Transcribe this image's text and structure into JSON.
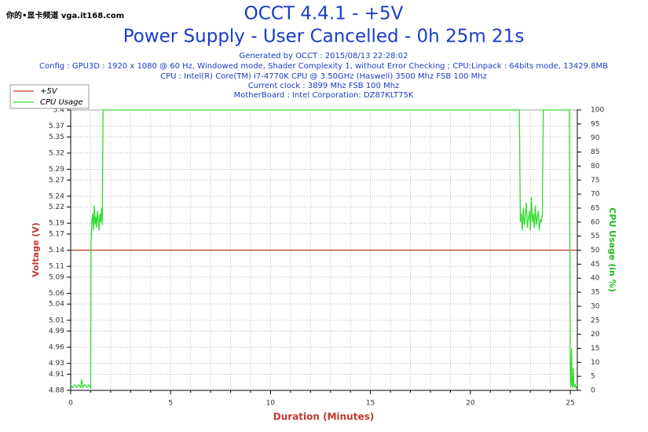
{
  "watermark": "你的•显卡频道 vga.it168.com",
  "chart_data": {
    "type": "line",
    "title": "OCCT 4.4.1 - +5V",
    "subtitle": "Power Supply - User Cancelled - 0h 25m 21s",
    "info": [
      "Generated by OCCT : 2015/08/13 22:28:02",
      "Config : GPU3D : 1920 x 1080 @ 60 Hz, Windowed mode, Shader Complexity 1, without Error Checking ; CPU:Linpack : 64bits mode, 13429.8MB",
      "CPU : Intel(R) Core(TM) i7-4770K CPU @ 3.50GHz (Haswell) 3500 Mhz FSB 100 Mhz",
      "Current clock : 3899 Mhz FSB 100 Mhz",
      "MotherBoard : Intel Corporation: DZ87KLT75K"
    ],
    "xlabel": "Duration (Minutes)",
    "ylabel": "Voltage (V)",
    "y2label": "CPU Usage (in %)",
    "xlim": [
      0,
      25.35
    ],
    "xticks": [
      0,
      5,
      10,
      15,
      20,
      25
    ],
    "x_minor_ticks": [
      1,
      2,
      3,
      4,
      6,
      7,
      8,
      9,
      11,
      12,
      13,
      14,
      16,
      17,
      18,
      19,
      21,
      22,
      23,
      24
    ],
    "ylim": [
      4.88,
      5.4
    ],
    "yticks": [
      4.88,
      4.91,
      4.93,
      4.96,
      4.99,
      5.01,
      5.04,
      5.06,
      5.09,
      5.11,
      5.14,
      5.17,
      5.19,
      5.22,
      5.24,
      5.27,
      5.29,
      5.32,
      5.35,
      5.37,
      5.4
    ],
    "y2lim": [
      0,
      100
    ],
    "y2ticks": [
      0,
      5,
      10,
      15,
      20,
      25,
      30,
      35,
      40,
      45,
      50,
      55,
      60,
      65,
      70,
      75,
      80,
      85,
      90,
      95,
      100
    ],
    "grid": true,
    "legend": "top-left",
    "series": [
      {
        "name": "+5V",
        "color": "#c0392b",
        "axis": "y",
        "x": [
          0,
          25.35
        ],
        "values": [
          5.14,
          5.14
        ]
      },
      {
        "name": "CPU Usage",
        "color": "#33dd33",
        "axis": "y2",
        "x": [
          0,
          0.1,
          0.2,
          0.3,
          0.4,
          0.5,
          0.55,
          0.6,
          0.7,
          0.8,
          0.9,
          1.0,
          1.02,
          1.06,
          1.1,
          1.14,
          1.18,
          1.22,
          1.26,
          1.3,
          1.34,
          1.38,
          1.42,
          1.46,
          1.5,
          1.54,
          1.58,
          1.62,
          22.45,
          22.5,
          22.55,
          22.6,
          22.65,
          22.7,
          22.75,
          22.8,
          22.85,
          22.9,
          22.95,
          23.0,
          23.05,
          23.1,
          23.15,
          23.2,
          23.25,
          23.3,
          23.35,
          23.4,
          23.45,
          23.5,
          23.55,
          23.6,
          23.65,
          24.95,
          25.0,
          25.03,
          25.06,
          25.09,
          25.12,
          25.15,
          25.18,
          25.21,
          25.25,
          25.3,
          25.35
        ],
        "values": [
          2,
          1,
          2,
          1,
          2,
          1,
          4,
          1,
          2,
          1,
          2,
          1,
          52,
          60,
          63,
          57,
          66,
          59,
          62,
          58,
          64,
          61,
          57,
          63,
          60,
          65,
          59,
          100,
          100,
          60,
          63,
          57,
          65,
          59,
          62,
          67,
          58,
          61,
          64,
          57,
          69,
          60,
          63,
          58,
          66,
          59,
          62,
          64,
          57,
          61,
          60,
          63,
          100,
          100,
          4,
          1,
          15,
          2,
          1,
          8,
          2,
          1,
          2,
          1,
          2
        ]
      }
    ]
  }
}
